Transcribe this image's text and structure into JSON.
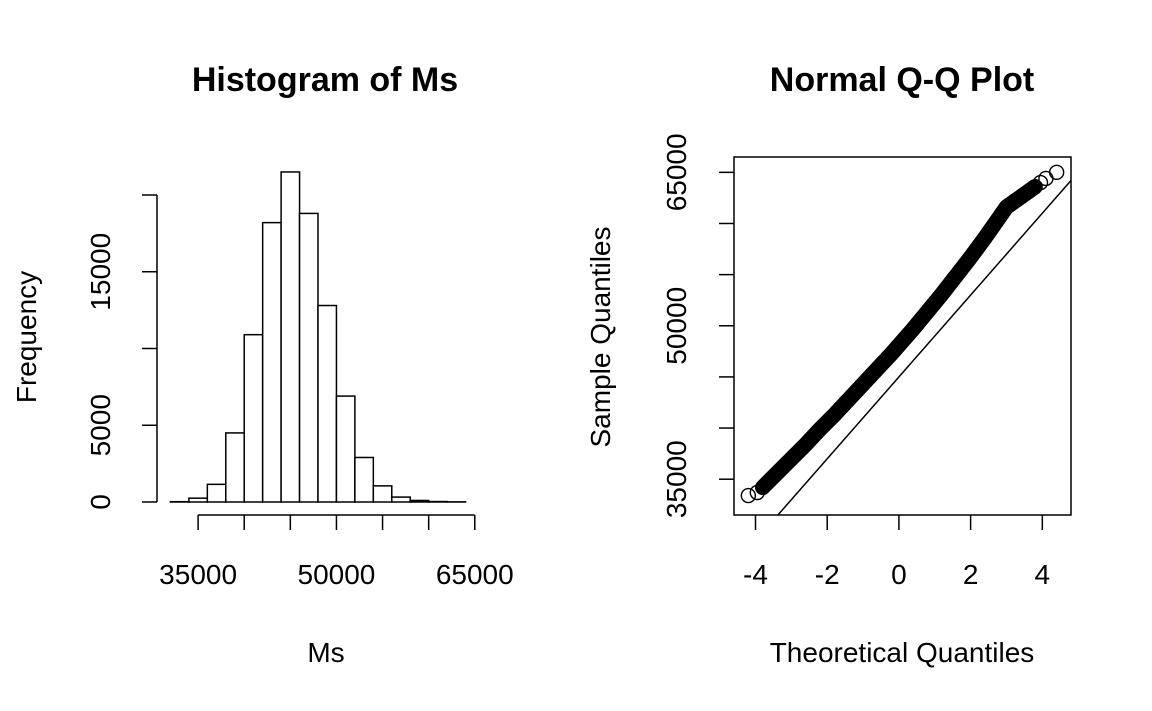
{
  "chart_data": [
    {
      "type": "bar",
      "title": "Histogram of Ms",
      "xlabel": "Ms",
      "ylabel": "Frequency",
      "xlim": [
        30000,
        66000
      ],
      "ylim": [
        0,
        20000
      ],
      "x_ticks": [
        35000,
        40000,
        45000,
        50000,
        55000,
        60000,
        65000
      ],
      "x_tick_labels": [
        "35000",
        "",
        "50000",
        "",
        "65000"
      ],
      "x_tick_labels_at": [
        35000,
        42500,
        50000,
        57500,
        65000
      ],
      "y_ticks": [
        0,
        5000,
        10000,
        15000,
        20000
      ],
      "y_tick_labels": [
        "0",
        "5000",
        "",
        "15000",
        ""
      ],
      "bin_edges": [
        32000,
        34000,
        36000,
        38000,
        40000,
        42000,
        44000,
        46000,
        48000,
        50000,
        52000,
        54000,
        56000,
        58000,
        60000,
        62000,
        64000
      ],
      "values": [
        20,
        250,
        1150,
        4500,
        10900,
        18200,
        21500,
        18800,
        12800,
        6900,
        2900,
        1050,
        320,
        100,
        30,
        10
      ],
      "grid": false
    },
    {
      "type": "scatter",
      "title": "Normal Q-Q Plot",
      "xlabel": "Theoretical Quantiles",
      "ylabel": "Sample Quantiles",
      "xlim": [
        -4.6,
        4.8
      ],
      "ylim": [
        31500,
        66500
      ],
      "x_ticks": [
        -4,
        -2,
        0,
        2,
        4
      ],
      "x_tick_labels": [
        "-4",
        "-2",
        "0",
        "2",
        "4"
      ],
      "y_ticks": [
        35000,
        40000,
        45000,
        50000,
        55000,
        60000,
        65000
      ],
      "y_tick_labels": [
        "35000",
        "",
        "",
        "50000",
        "",
        "",
        "65000"
      ],
      "reference_line": {
        "slope": 4000,
        "intercept": 45000
      },
      "points_theoretical": [
        -4.2,
        -3.95,
        -3.8,
        -3.6,
        -3.4,
        -3.2,
        -3.0,
        -2.8,
        -2.6,
        -2.4,
        -2.2,
        -2.0,
        -1.8,
        -1.6,
        -1.4,
        -1.2,
        -1.0,
        -0.8,
        -0.6,
        -0.4,
        -0.2,
        0.0,
        0.2,
        0.4,
        0.6,
        0.8,
        1.0,
        1.2,
        1.4,
        1.6,
        1.8,
        2.0,
        2.2,
        2.4,
        2.6,
        2.8,
        3.0,
        3.2,
        3.4,
        3.6,
        3.8,
        3.95,
        4.1,
        4.4
      ],
      "points_sample": [
        33400,
        33700,
        34200,
        34900,
        35600,
        36300,
        37000,
        37700,
        38400,
        39150,
        39900,
        40600,
        41300,
        42050,
        42800,
        43550,
        44300,
        45050,
        45800,
        46550,
        47300,
        48100,
        48900,
        49700,
        50550,
        51400,
        52250,
        53100,
        54000,
        54900,
        55800,
        56700,
        57650,
        58600,
        59600,
        60600,
        61600,
        62100,
        62600,
        63100,
        63600,
        64000,
        64400,
        65000
      ],
      "grid": false
    }
  ]
}
